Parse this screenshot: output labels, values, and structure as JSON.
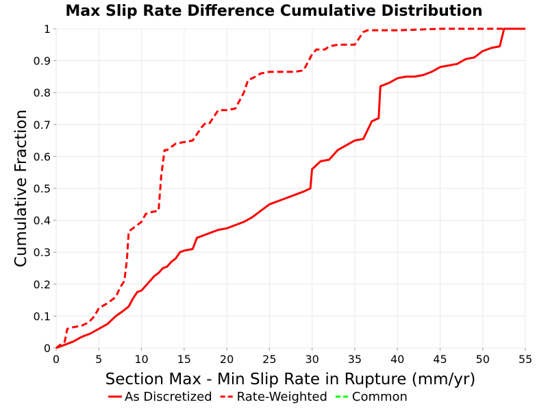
{
  "chart_data": {
    "type": "line",
    "title": "Max Slip Rate Difference Cumulative Distribution",
    "xlabel": "Section Max - Min Slip Rate in Rupture (mm/yr)",
    "ylabel": "Cumulative Fraction",
    "xlim": [
      0,
      55
    ],
    "ylim": [
      0,
      1
    ],
    "xticks": [
      0,
      5,
      10,
      15,
      20,
      25,
      30,
      35,
      40,
      45,
      50,
      55
    ],
    "yticks": [
      0,
      0.1,
      0.2,
      0.3,
      0.4,
      0.5,
      0.6,
      0.7,
      0.8,
      0.9,
      1
    ],
    "ytick_labels": [
      "0",
      "0.1",
      "0.2",
      "0.3",
      "0.4",
      "0.5",
      "0.6",
      "0.7",
      "0.8",
      "0.9",
      "1"
    ],
    "grid": true,
    "legend_position": "bottom",
    "series": [
      {
        "name": "As Discretized",
        "color": "#ff0000",
        "dash": "solid",
        "x": [
          0,
          1,
          2,
          3,
          4,
          5,
          6,
          7,
          7.8,
          8.5,
          9.0,
          9.5,
          10.0,
          10.5,
          11.0,
          11.5,
          12.0,
          12.5,
          13.0,
          13.5,
          14.0,
          14.5,
          15.0,
          16.0,
          16.5,
          17.0,
          18.0,
          19.0,
          20.0,
          21.0,
          22.0,
          23.0,
          24.0,
          25.0,
          26.0,
          27.0,
          28.0,
          29.0,
          29.8,
          30.0,
          31.0,
          32.0,
          33.0,
          34.0,
          35.0,
          36.0,
          37.0,
          37.8,
          38.0,
          39.0,
          40.0,
          41.0,
          42.0,
          43.0,
          44.0,
          45.0,
          46.0,
          47.0,
          48.0,
          49.0,
          50.0,
          51.0,
          52.0,
          52.5,
          53.0,
          55.0
        ],
        "y": [
          0,
          0.01,
          0.02,
          0.035,
          0.045,
          0.06,
          0.075,
          0.1,
          0.115,
          0.13,
          0.155,
          0.175,
          0.18,
          0.195,
          0.21,
          0.225,
          0.235,
          0.25,
          0.255,
          0.27,
          0.28,
          0.3,
          0.305,
          0.31,
          0.345,
          0.35,
          0.36,
          0.37,
          0.375,
          0.385,
          0.395,
          0.41,
          0.43,
          0.45,
          0.46,
          0.47,
          0.48,
          0.49,
          0.5,
          0.56,
          0.585,
          0.59,
          0.62,
          0.635,
          0.65,
          0.655,
          0.71,
          0.72,
          0.82,
          0.83,
          0.845,
          0.85,
          0.85,
          0.855,
          0.865,
          0.88,
          0.885,
          0.89,
          0.905,
          0.91,
          0.93,
          0.94,
          0.945,
          1.0,
          1.0,
          1.0
        ]
      },
      {
        "name": "Rate-Weighted",
        "color": "#ff0000",
        "dash": "dashed",
        "x": [
          0,
          1.0,
          1.3,
          2.0,
          3.0,
          3.8,
          4.5,
          5.0,
          6.0,
          7.0,
          7.5,
          8.0,
          8.3,
          8.5,
          9.0,
          10.0,
          10.5,
          11.0,
          12.0,
          12.3,
          12.7,
          13.0,
          14.0,
          15.0,
          16.0,
          17.0,
          17.5,
          18.0,
          19.0,
          20.0,
          21.0,
          22.0,
          22.5,
          23.0,
          24.0,
          25.0,
          26.0,
          27.0,
          28.0,
          29.0,
          30.0,
          30.5,
          31.5,
          32.0,
          33.0,
          34.0,
          35.0,
          36.0,
          36.5,
          37.0,
          38.0,
          40.0,
          45.0,
          50.0,
          55.0
        ],
        "y": [
          0,
          0.02,
          0.06,
          0.065,
          0.07,
          0.08,
          0.1,
          0.125,
          0.14,
          0.16,
          0.19,
          0.21,
          0.28,
          0.365,
          0.375,
          0.395,
          0.42,
          0.425,
          0.43,
          0.535,
          0.62,
          0.62,
          0.64,
          0.645,
          0.65,
          0.69,
          0.705,
          0.705,
          0.745,
          0.745,
          0.75,
          0.8,
          0.84,
          0.845,
          0.86,
          0.865,
          0.865,
          0.865,
          0.865,
          0.87,
          0.92,
          0.935,
          0.935,
          0.945,
          0.95,
          0.95,
          0.95,
          0.99,
          0.995,
          0.995,
          0.995,
          0.995,
          1.0,
          1.0,
          1.0
        ]
      },
      {
        "name": "Common",
        "color": "#00ff00",
        "dash": "dashed",
        "x": [],
        "y": []
      }
    ]
  }
}
